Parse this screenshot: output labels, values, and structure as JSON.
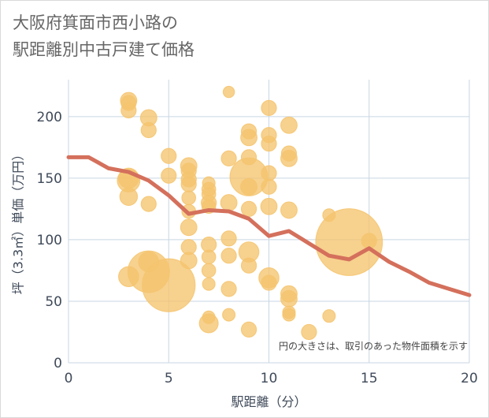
{
  "title_lines": [
    "大阪府箕面市西小路の",
    "駅距離別中古戸建て価格"
  ],
  "colors": {
    "bubble": "#f5c46e",
    "line": "#d4705c",
    "grid": "#c9d6e3",
    "plot_bg": "#ffffff"
  },
  "chart_data": {
    "type": "scatter",
    "xlabel": "駅距離（分）",
    "ylabel": "坪（3.3㎡）単価（万円）",
    "xlim": [
      0,
      20
    ],
    "ylim": [
      0,
      230
    ],
    "xticks": [
      0,
      5,
      10,
      15,
      20
    ],
    "yticks": [
      0,
      50,
      100,
      150,
      200
    ],
    "note": "円の大きさは、取引のあった物件面積を示す",
    "grid": true,
    "points": [
      {
        "x": 3,
        "y": 213,
        "s": 1.3
      },
      {
        "x": 3,
        "y": 211,
        "s": 1.2
      },
      {
        "x": 3,
        "y": 205,
        "s": 1.2
      },
      {
        "x": 3,
        "y": 150,
        "s": 1.6
      },
      {
        "x": 3,
        "y": 148,
        "s": 1.8
      },
      {
        "x": 3,
        "y": 135,
        "s": 1.4
      },
      {
        "x": 3,
        "y": 70,
        "s": 1.6
      },
      {
        "x": 4,
        "y": 199,
        "s": 1.3
      },
      {
        "x": 4,
        "y": 189,
        "s": 1.2
      },
      {
        "x": 4,
        "y": 129,
        "s": 1.2
      },
      {
        "x": 4,
        "y": 82,
        "s": 1.6
      },
      {
        "x": 4,
        "y": 74,
        "s": 3.3
      },
      {
        "x": 5,
        "y": 168,
        "s": 1.2
      },
      {
        "x": 5,
        "y": 152,
        "s": 1.2
      },
      {
        "x": 5,
        "y": 63,
        "s": 4.2
      },
      {
        "x": 6,
        "y": 160,
        "s": 1.3
      },
      {
        "x": 6,
        "y": 156,
        "s": 1.2
      },
      {
        "x": 6,
        "y": 149,
        "s": 1.2
      },
      {
        "x": 6,
        "y": 145,
        "s": 1.2
      },
      {
        "x": 6,
        "y": 134,
        "s": 1.1
      },
      {
        "x": 6,
        "y": 123,
        "s": 1.1
      },
      {
        "x": 6,
        "y": 110,
        "s": 1.3
      },
      {
        "x": 6,
        "y": 94,
        "s": 1.2
      },
      {
        "x": 6,
        "y": 83,
        "s": 1.3
      },
      {
        "x": 7,
        "y": 146,
        "s": 1.0
      },
      {
        "x": 7,
        "y": 141,
        "s": 1.1
      },
      {
        "x": 7,
        "y": 137,
        "s": 1.1
      },
      {
        "x": 7,
        "y": 130,
        "s": 1.2
      },
      {
        "x": 7,
        "y": 127,
        "s": 1.1
      },
      {
        "x": 7,
        "y": 96,
        "s": 1.2
      },
      {
        "x": 7,
        "y": 86,
        "s": 1.1
      },
      {
        "x": 7,
        "y": 75,
        "s": 1.1
      },
      {
        "x": 7,
        "y": 64,
        "s": 1.0
      },
      {
        "x": 7,
        "y": 37,
        "s": 1.0
      },
      {
        "x": 7,
        "y": 32,
        "s": 1.5
      },
      {
        "x": 8,
        "y": 220,
        "s": 0.9
      },
      {
        "x": 8,
        "y": 166,
        "s": 1.2
      },
      {
        "x": 8,
        "y": 130,
        "s": 1.3
      },
      {
        "x": 8,
        "y": 101,
        "s": 1.2
      },
      {
        "x": 8,
        "y": 87,
        "s": 1.2
      },
      {
        "x": 8,
        "y": 60,
        "s": 1.2
      },
      {
        "x": 8,
        "y": 39,
        "s": 1.0
      },
      {
        "x": 9,
        "y": 188,
        "s": 1.2
      },
      {
        "x": 9,
        "y": 183,
        "s": 1.3
      },
      {
        "x": 9,
        "y": 167,
        "s": 1.2
      },
      {
        "x": 9,
        "y": 151,
        "s": 3.0
      },
      {
        "x": 9,
        "y": 143,
        "s": 1.3
      },
      {
        "x": 9,
        "y": 125,
        "s": 1.2
      },
      {
        "x": 9,
        "y": 90,
        "s": 1.6
      },
      {
        "x": 9,
        "y": 79,
        "s": 1.2
      },
      {
        "x": 9,
        "y": 27,
        "s": 1.2
      },
      {
        "x": 10,
        "y": 207,
        "s": 1.2
      },
      {
        "x": 10,
        "y": 185,
        "s": 1.2
      },
      {
        "x": 10,
        "y": 178,
        "s": 1.2
      },
      {
        "x": 10,
        "y": 154,
        "s": 1.2
      },
      {
        "x": 10,
        "y": 143,
        "s": 1.2
      },
      {
        "x": 10,
        "y": 127,
        "s": 1.3
      },
      {
        "x": 10,
        "y": 69,
        "s": 1.6
      },
      {
        "x": 10,
        "y": 65,
        "s": 1.2
      },
      {
        "x": 11,
        "y": 193,
        "s": 1.3
      },
      {
        "x": 11,
        "y": 170,
        "s": 1.2
      },
      {
        "x": 11,
        "y": 166,
        "s": 1.3
      },
      {
        "x": 11,
        "y": 124,
        "s": 1.3
      },
      {
        "x": 11,
        "y": 56,
        "s": 1.3
      },
      {
        "x": 11,
        "y": 52,
        "s": 1.3
      },
      {
        "x": 11,
        "y": 41,
        "s": 1.0
      },
      {
        "x": 11,
        "y": 39,
        "s": 1.0
      },
      {
        "x": 12,
        "y": 25,
        "s": 1.2
      },
      {
        "x": 13,
        "y": 120,
        "s": 1.0
      },
      {
        "x": 13,
        "y": 38,
        "s": 1.0
      },
      {
        "x": 14,
        "y": 98,
        "s": 5.3
      },
      {
        "x": 15,
        "y": 99,
        "s": 1.2
      }
    ],
    "series": [
      {
        "type": "line",
        "x": [
          0,
          1,
          2,
          3,
          4,
          5,
          6,
          7,
          8,
          9,
          10,
          11,
          12,
          13,
          14,
          15,
          16,
          17,
          18,
          19,
          20
        ],
        "values": [
          167,
          167,
          158,
          155,
          148,
          136,
          121,
          124,
          123,
          117,
          103,
          107,
          97,
          87,
          84,
          93,
          82,
          74,
          65,
          60,
          55
        ]
      }
    ]
  }
}
